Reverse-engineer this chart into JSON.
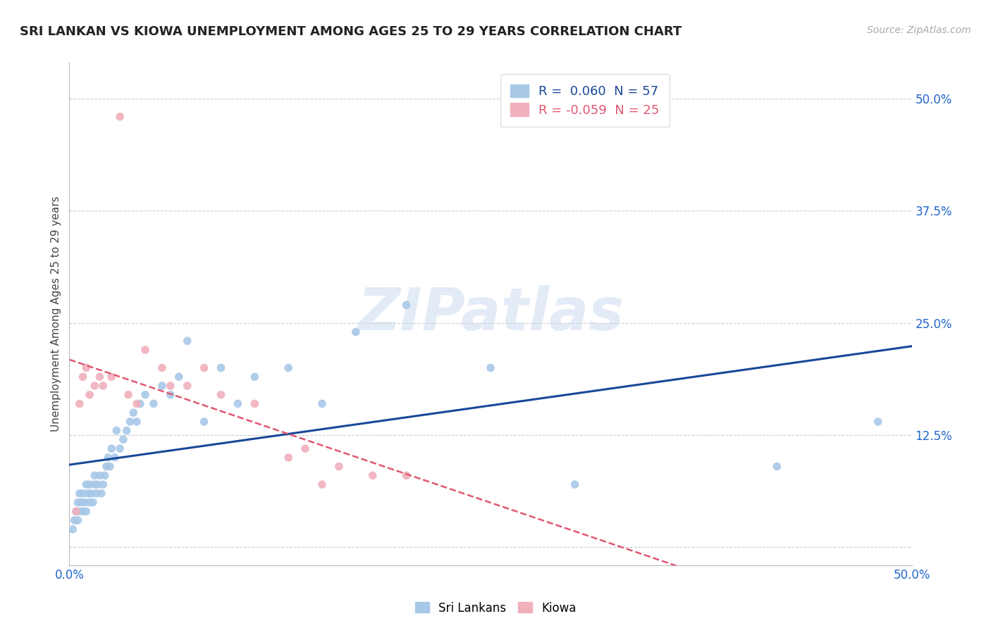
{
  "title": "SRI LANKAN VS KIOWA UNEMPLOYMENT AMONG AGES 25 TO 29 YEARS CORRELATION CHART",
  "source": "Source: ZipAtlas.com",
  "ylabel": "Unemployment Among Ages 25 to 29 years",
  "xlim": [
    0.0,
    0.5
  ],
  "ylim": [
    -0.02,
    0.54
  ],
  "yticks": [
    0.0,
    0.125,
    0.25,
    0.375,
    0.5
  ],
  "ytick_labels": [
    "",
    "12.5%",
    "25.0%",
    "37.5%",
    "50.0%"
  ],
  "xticks": [
    0.0,
    0.1,
    0.2,
    0.3,
    0.4,
    0.5
  ],
  "xtick_labels": [
    "0.0%",
    "",
    "",
    "",
    "",
    "50.0%"
  ],
  "sri_lankans_R": 0.06,
  "sri_lankans_N": 57,
  "kiowa_R": -0.059,
  "kiowa_N": 25,
  "background_color": "#ffffff",
  "grid_color": "#cccccc",
  "sri_color": "#a8c8e8",
  "kiowa_color": "#f0b0bc",
  "sri_line_color": "#1a4899",
  "kiowa_line_color": "#e05870",
  "watermark_color": "#d0dff0",
  "sri_x": [
    0.002,
    0.003,
    0.004,
    0.005,
    0.005,
    0.006,
    0.006,
    0.007,
    0.008,
    0.008,
    0.009,
    0.01,
    0.01,
    0.011,
    0.012,
    0.012,
    0.013,
    0.014,
    0.015,
    0.015,
    0.016,
    0.017,
    0.018,
    0.019,
    0.02,
    0.021,
    0.022,
    0.023,
    0.024,
    0.025,
    0.027,
    0.028,
    0.03,
    0.032,
    0.034,
    0.036,
    0.038,
    0.04,
    0.042,
    0.045,
    0.05,
    0.055,
    0.06,
    0.065,
    0.07,
    0.08,
    0.09,
    0.1,
    0.11,
    0.13,
    0.15,
    0.17,
    0.2,
    0.25,
    0.3,
    0.42,
    0.48
  ],
  "sri_y": [
    0.02,
    0.03,
    0.04,
    0.03,
    0.05,
    0.04,
    0.06,
    0.05,
    0.04,
    0.06,
    0.05,
    0.07,
    0.04,
    0.06,
    0.05,
    0.07,
    0.06,
    0.05,
    0.07,
    0.08,
    0.06,
    0.07,
    0.08,
    0.06,
    0.07,
    0.08,
    0.09,
    0.1,
    0.09,
    0.11,
    0.1,
    0.13,
    0.11,
    0.12,
    0.13,
    0.14,
    0.15,
    0.14,
    0.16,
    0.17,
    0.16,
    0.18,
    0.17,
    0.19,
    0.23,
    0.14,
    0.2,
    0.16,
    0.19,
    0.2,
    0.16,
    0.24,
    0.27,
    0.2,
    0.07,
    0.09,
    0.14
  ],
  "kiowa_x": [
    0.004,
    0.006,
    0.008,
    0.01,
    0.012,
    0.015,
    0.018,
    0.02,
    0.025,
    0.03,
    0.035,
    0.04,
    0.045,
    0.055,
    0.06,
    0.07,
    0.08,
    0.09,
    0.11,
    0.13,
    0.14,
    0.15,
    0.16,
    0.18,
    0.2
  ],
  "kiowa_y": [
    0.04,
    0.16,
    0.19,
    0.2,
    0.17,
    0.18,
    0.19,
    0.18,
    0.19,
    0.48,
    0.17,
    0.16,
    0.22,
    0.2,
    0.18,
    0.18,
    0.2,
    0.17,
    0.16,
    0.1,
    0.11,
    0.07,
    0.09,
    0.08,
    0.08
  ]
}
